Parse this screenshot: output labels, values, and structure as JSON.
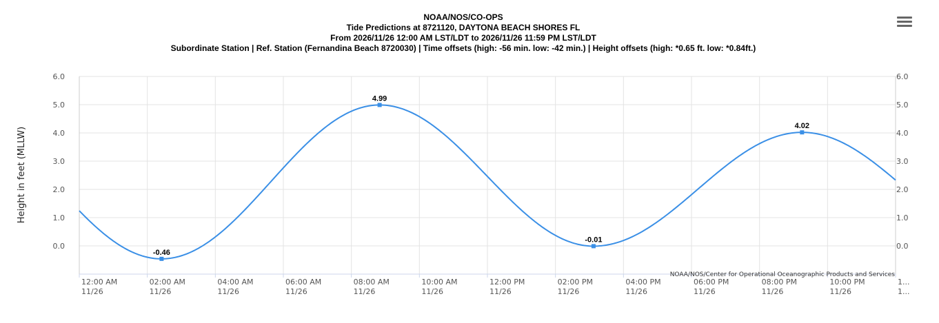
{
  "chart_data": {
    "type": "line",
    "title_lines": [
      "NOAA/NOS/CO-OPS",
      "Tide Predictions at 8721120, DAYTONA BEACH SHORES FL",
      "From 2026/11/26 12:00 AM LST/LDT to 2026/11/26 11:59 PM LST/LDT",
      "Subordinate Station | Ref. Station (Fernandina Beach 8720030) | Time offsets (high: -56 min. low: -42 min.) | Height offsets (high: *0.65 ft. low: *0.84ft.)"
    ],
    "ylabel": "Height in feet (MLLW)",
    "ylim": [
      -1.0,
      6.0
    ],
    "y_ticks": [
      "0.0",
      "1.0",
      "2.0",
      "3.0",
      "4.0",
      "5.0",
      "6.0"
    ],
    "x_unit": "hours since 12:00 AM 11/26",
    "xlim": [
      0,
      24
    ],
    "x_ticks": [
      {
        "time": "12:00 AM",
        "date": "11/26"
      },
      {
        "time": "02:00 AM",
        "date": "11/26"
      },
      {
        "time": "04:00 AM",
        "date": "11/26"
      },
      {
        "time": "06:00 AM",
        "date": "11/26"
      },
      {
        "time": "08:00 AM",
        "date": "11/26"
      },
      {
        "time": "10:00 AM",
        "date": "11/26"
      },
      {
        "time": "12:00 PM",
        "date": "11/26"
      },
      {
        "time": "02:00 PM",
        "date": "11/26"
      },
      {
        "time": "04:00 PM",
        "date": "11/26"
      },
      {
        "time": "06:00 PM",
        "date": "11/26"
      },
      {
        "time": "08:00 PM",
        "date": "11/26"
      },
      {
        "time": "10:00 PM",
        "date": "11/26"
      },
      {
        "time": "1...",
        "date": "1..."
      }
    ],
    "extremes": [
      {
        "x": 2.42,
        "y": -0.46,
        "label": "-0.46"
      },
      {
        "x": 8.83,
        "y": 4.99,
        "label": "4.99"
      },
      {
        "x": 15.12,
        "y": -0.01,
        "label": "-0.01"
      },
      {
        "x": 21.25,
        "y": 4.02,
        "label": "4.02"
      }
    ],
    "series": [
      {
        "values": [
          [
            0.0,
            1.05
          ],
          [
            24.0,
            2.2
          ]
        ]
      }
    ],
    "line_color": "#3a8fe6",
    "grid": true,
    "credits": "NOAA/NOS/Center for Operational Oceanographic Products and Services"
  },
  "ui": {
    "menu_icon": "hamburger-menu-icon"
  }
}
